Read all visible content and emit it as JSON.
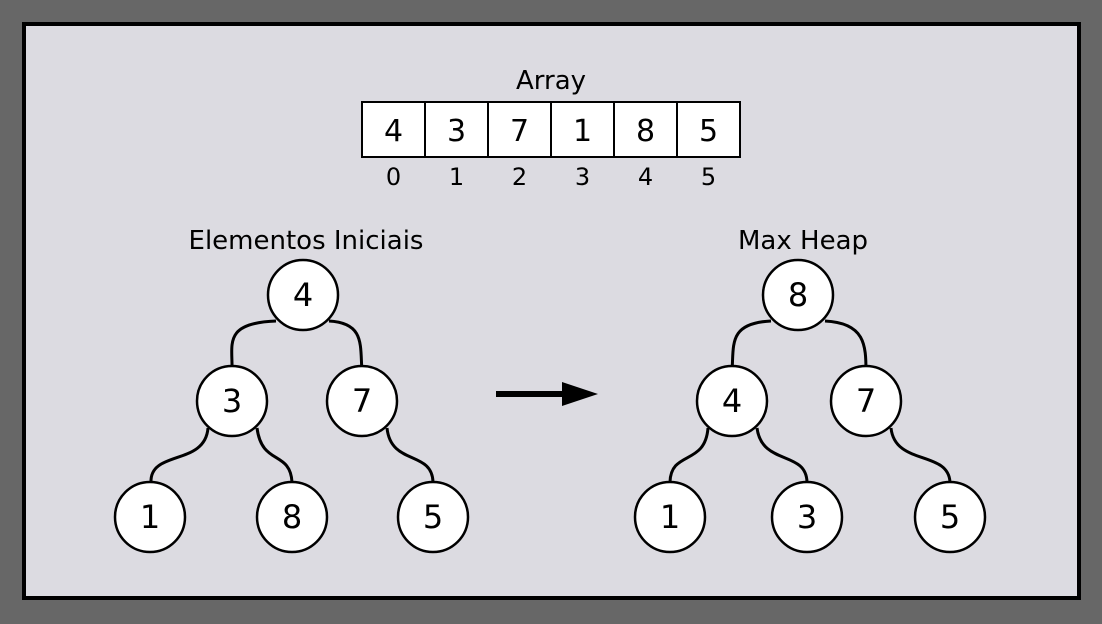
{
  "array": {
    "title": "Array",
    "values": [
      "4",
      "3",
      "7",
      "1",
      "8",
      "5"
    ],
    "indices": [
      "0",
      "1",
      "2",
      "3",
      "4",
      "5"
    ]
  },
  "trees": [
    {
      "id": "initial",
      "title": "Elementos Iniciais",
      "nodes": [
        "4",
        "3",
        "7",
        "1",
        "8",
        "5"
      ]
    },
    {
      "id": "max-heap",
      "title": "Max Heap",
      "nodes": [
        "8",
        "4",
        "7",
        "1",
        "3",
        "5"
      ]
    }
  ],
  "colors": {
    "background": "#676767",
    "panel": "#dcdbe1",
    "stroke": "#000000",
    "node_fill": "#ffffff"
  }
}
